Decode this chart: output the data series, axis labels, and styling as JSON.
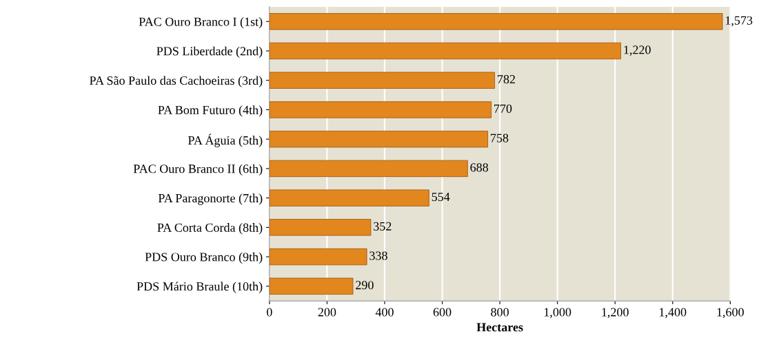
{
  "chart_data": {
    "type": "bar",
    "orientation": "horizontal",
    "xlabel": "Hectares",
    "categories": [
      "PAC Ouro Branco I (1st)",
      "PDS Liberdade (2nd)",
      "PA São Paulo das Cachoeiras (3rd)",
      "PA Bom Futuro (4th)",
      "PA Águia (5th)",
      "PAC Ouro Branco II (6th)",
      "PA Paragonorte (7th)",
      "PA Corta Corda (8th)",
      "PDS Ouro Branco (9th)",
      "PDS Mário Braule (10th)"
    ],
    "values": [
      1573,
      1220,
      782,
      770,
      758,
      688,
      554,
      352,
      338,
      290
    ],
    "value_labels": [
      "1,573",
      "1,220",
      "782",
      "770",
      "758",
      "688",
      "554",
      "352",
      "338",
      "290"
    ],
    "color": "#e2861e",
    "xlim": [
      0,
      1600
    ],
    "xticks": [
      0,
      200,
      400,
      600,
      800,
      {
        "value": 1000,
        "label": "1,000"
      },
      {
        "value": 1200,
        "label": "1,200"
      },
      {
        "value": 1400,
        "label": "1,400"
      },
      {
        "value": 1600,
        "label": "1,600"
      }
    ],
    "grid": "x"
  }
}
